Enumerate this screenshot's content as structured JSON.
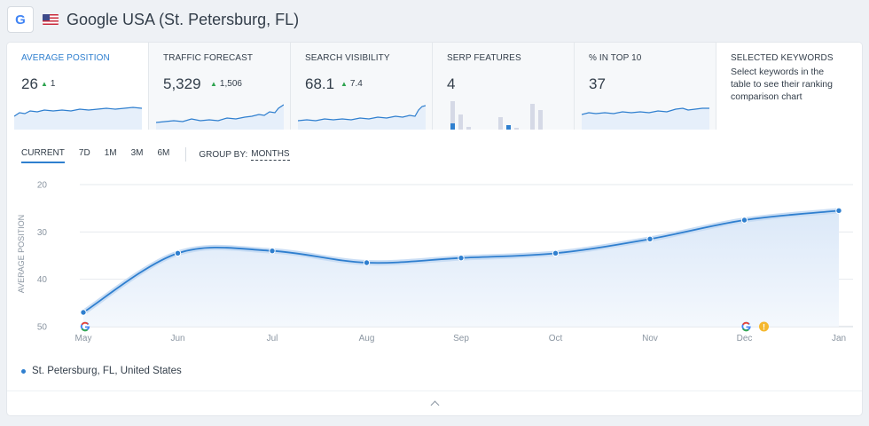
{
  "header": {
    "engine_icon": "google-icon",
    "engine_letter": "G",
    "flag_icon": "us-flag-icon",
    "title": "Google USA (St. Petersburg, FL)"
  },
  "metrics": [
    {
      "label": "AVERAGE POSITION",
      "value": "26",
      "delta": "1",
      "active": true
    },
    {
      "label": "TRAFFIC FORECAST",
      "value": "5,329",
      "delta": "1,506"
    },
    {
      "label": "SEARCH VISIBILITY",
      "value": "68.1",
      "delta": "7.4"
    },
    {
      "label": "SERP FEATURES",
      "value": "4"
    },
    {
      "label": "% IN TOP 10",
      "value": "37"
    },
    {
      "label": "SELECTED KEYWORDS",
      "description": "Select keywords in the table to see their ranking comparison chart"
    }
  ],
  "toolbar": {
    "tabs": [
      "CURRENT",
      "7D",
      "1M",
      "3M",
      "6M"
    ],
    "active_tab": "CURRENT",
    "group_by_label": "GROUP BY:",
    "group_by_value": "MONTHS"
  },
  "chart_data": {
    "type": "area",
    "ylabel": "AVERAGE POSITION",
    "y_reversed": true,
    "ylim": [
      20,
      50
    ],
    "yticks": [
      20,
      30,
      40,
      50
    ],
    "categories": [
      "May",
      "Jun",
      "Jul",
      "Aug",
      "Sep",
      "Oct",
      "Nov",
      "Dec",
      "Jan"
    ],
    "series": [
      {
        "name": "St. Petersburg, FL, United States",
        "values": [
          47,
          34.5,
          34,
          36.5,
          35.5,
          34.5,
          31.5,
          27.5,
          25.5
        ]
      }
    ],
    "annotations": [
      {
        "x": "May",
        "icon": "google-update-icon"
      },
      {
        "x": "Dec",
        "icon": "google-update-icon"
      },
      {
        "x": "Dec",
        "icon": "warning-icon"
      }
    ],
    "grid": true,
    "line_color": "#2f7fcf"
  },
  "legend": {
    "label": "St. Petersburg, FL, United States"
  },
  "colors": {
    "accent": "#2f7fcf",
    "up": "#2ea44f",
    "serp_bar": "#d5d9e6",
    "serp_bar_active": "#2f7fcf"
  },
  "footer": {
    "icon": "chevron-up-icon"
  }
}
